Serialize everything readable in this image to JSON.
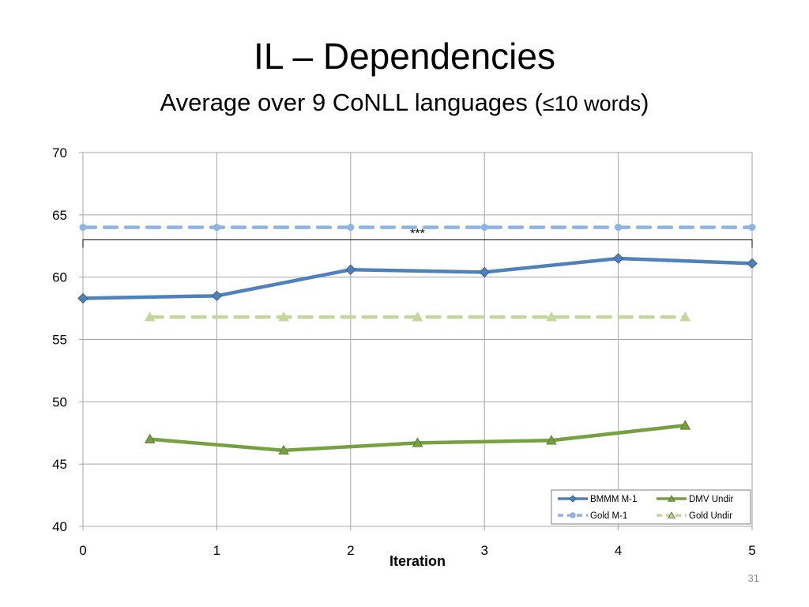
{
  "slide": {
    "title": "IL – Dependencies",
    "subtitle_prefix": "Average over 9 CoNLL languages (",
    "subtitle_inner": "≤10 words",
    "subtitle_suffix": ")",
    "slide_number": "31"
  },
  "chart_data": {
    "type": "line",
    "xlabel": "Iteration",
    "ylabel": "",
    "xlim": [
      0,
      5
    ],
    "ylim": [
      40,
      70
    ],
    "x_ticks": [
      0,
      1,
      2,
      3,
      4,
      5
    ],
    "y_ticks": [
      40,
      45,
      50,
      55,
      60,
      65,
      70
    ],
    "grid": true,
    "legend_position": "bottom-right",
    "annotation": {
      "text": "***",
      "x_range": [
        0,
        5
      ],
      "y": 63
    },
    "series": [
      {
        "name": "BMMM M-1",
        "color": "#4f81bd",
        "dash": false,
        "marker": "diamond",
        "x": [
          0,
          1,
          2,
          3,
          4,
          5
        ],
        "values": [
          58.3,
          58.5,
          60.6,
          60.4,
          61.5,
          61.1
        ]
      },
      {
        "name": "DMV Undir",
        "color": "#77a040",
        "dash": false,
        "marker": "triangle",
        "x": [
          0.5,
          1.5,
          2.5,
          3.5,
          4.5
        ],
        "values": [
          47.0,
          46.1,
          46.7,
          46.9,
          48.1
        ]
      },
      {
        "name": "Gold M-1",
        "color": "#8eb4e3",
        "dash": true,
        "marker": "circle",
        "x": [
          0,
          1,
          2,
          3,
          4,
          5
        ],
        "values": [
          64,
          64,
          64,
          64,
          64,
          64
        ]
      },
      {
        "name": "Gold Undir",
        "color": "#c3d69b",
        "dash": true,
        "marker": "triangle",
        "x": [
          0.5,
          1.5,
          2.5,
          3.5,
          4.5
        ],
        "values": [
          56.8,
          56.8,
          56.8,
          56.8,
          56.8
        ]
      }
    ]
  }
}
